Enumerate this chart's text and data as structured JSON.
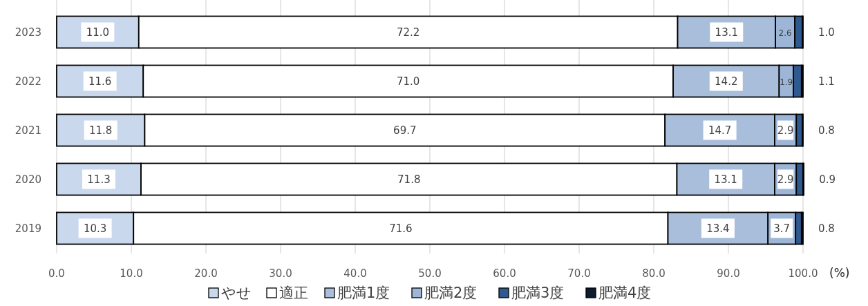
{
  "chart_data": {
    "type": "bar",
    "orientation": "horizontal",
    "stacked": true,
    "categories": [
      "2023",
      "2022",
      "2021",
      "2020",
      "2019"
    ],
    "series": [
      {
        "name": "やせ",
        "color": "#c9d8ec",
        "values": [
          11.0,
          11.6,
          11.8,
          11.3,
          10.3
        ],
        "value_labels": [
          "11.0",
          "11.6",
          "11.8",
          "11.3",
          "10.3"
        ]
      },
      {
        "name": "適正",
        "color": "#ffffff",
        "values": [
          72.2,
          71.0,
          69.7,
          71.8,
          71.6
        ],
        "value_labels": [
          "72.2",
          "71.0",
          "69.7",
          "71.8",
          "71.6"
        ]
      },
      {
        "name": "肥満1度",
        "color": "#a9bedb",
        "values": [
          13.1,
          14.2,
          14.7,
          13.1,
          13.4
        ],
        "value_labels": [
          "13.1",
          "14.2",
          "14.7",
          "13.1",
          "13.4"
        ]
      },
      {
        "name": "肥満2度",
        "color": "#9db6d8",
        "values": [
          2.6,
          1.9,
          2.9,
          2.9,
          3.7
        ],
        "value_labels": [
          "2.6",
          "1.9",
          "2.9",
          "2.9",
          "3.7"
        ]
      },
      {
        "name": "肥満3度",
        "color": "#2f5a8f",
        "values": [
          1.0,
          1.1,
          0.8,
          0.9,
          0.8
        ],
        "value_labels": [
          "1.0",
          "1.1",
          "0.8",
          "0.9",
          "0.8"
        ]
      },
      {
        "name": "肥満4度",
        "color": "#0e1c30",
        "values": [
          0.1,
          0.2,
          0.1,
          0.1,
          0.2
        ]
      }
    ],
    "xlim": [
      0,
      100
    ],
    "xticks": [
      {
        "value": 0,
        "label": "0.0"
      },
      {
        "value": 10,
        "label": "10.0"
      },
      {
        "value": 20,
        "label": "20.0"
      },
      {
        "value": 30,
        "label": "30.0"
      },
      {
        "value": 40,
        "label": "40.0"
      },
      {
        "value": 50,
        "label": "50.0"
      },
      {
        "value": 60,
        "label": "60.0"
      },
      {
        "value": 70,
        "label": "70.0"
      },
      {
        "value": 80,
        "label": "80.0"
      },
      {
        "value": 90,
        "label": "90.0"
      },
      {
        "value": 100,
        "label": "100.0"
      }
    ],
    "xlabel": "(%)",
    "grid": "x",
    "legend": "bottom"
  }
}
